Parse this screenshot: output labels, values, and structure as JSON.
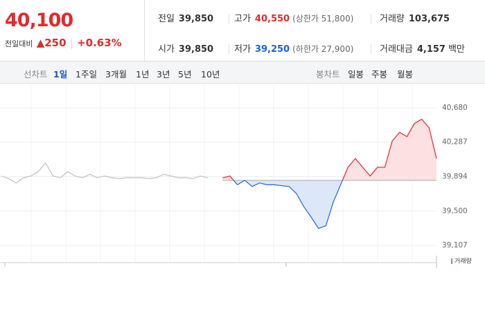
{
  "quote": {
    "price": "40,100",
    "change_label": "전일대비",
    "change": "250",
    "change_pct": "+0.63%",
    "stats": [
      [
        {
          "label": "전일",
          "value": "39,850"
        },
        {
          "label": "고가",
          "value": "40,550",
          "note": "(상한가 51,800)"
        },
        {
          "label": "거래량",
          "value": "103,675"
        }
      ],
      [
        {
          "label": "시가",
          "value": "39,850"
        },
        {
          "label": "저가",
          "value": "39,250",
          "note": "(하한가 27,900)"
        },
        {
          "label": "거래대금",
          "value": "4,157",
          "unit": "백만"
        }
      ]
    ]
  },
  "tabs": {
    "line_label": "선차트",
    "periods": [
      "1일",
      "1주일",
      "3개월",
      "1년",
      "3년",
      "5년",
      "10년"
    ],
    "candle_label": "봉차트",
    "candles": [
      "일봉",
      "주봉",
      "월봉"
    ]
  },
  "chart_data": {
    "type": "line",
    "baseline": 39850,
    "up_color": "#e8323c",
    "down_color": "#2f6fd6",
    "up_fill": "#fde0e1",
    "down_fill": "#dce7f7",
    "legend": "거래량",
    "ylim": [
      39107,
      40680
    ],
    "yticks": [
      {
        "value": 40680,
        "label": "40,680"
      },
      {
        "value": 40287,
        "label": "40,287"
      },
      {
        "value": 39894,
        "label": "39,894"
      },
      {
        "value": 39500,
        "label": "39,500"
      },
      {
        "value": 39107,
        "label": "39,107"
      }
    ],
    "series": [
      {
        "color": "#c4c4c4",
        "values": [
          39900,
          39870,
          39820,
          39880,
          39900,
          39950,
          40050,
          39900,
          39880,
          39950,
          39900,
          39880,
          39920,
          39880,
          39900,
          39880,
          39870,
          39880,
          39880,
          39880,
          39870,
          39880,
          39920,
          39900,
          39880,
          39880,
          39870,
          39900,
          39880,
          null,
          null,
          null,
          null,
          null,
          null,
          null,
          null,
          null,
          null,
          null,
          null,
          null,
          null,
          null,
          null,
          null,
          null,
          null,
          null,
          null,
          null,
          null,
          null,
          null,
          null,
          null,
          null,
          null,
          null,
          null
        ]
      },
      {
        "color": "#e8323c",
        "values": [
          null,
          null,
          null,
          null,
          null,
          null,
          null,
          null,
          null,
          null,
          null,
          null,
          null,
          null,
          null,
          null,
          null,
          null,
          null,
          null,
          null,
          null,
          null,
          null,
          null,
          null,
          null,
          null,
          null,
          null,
          39880,
          39900,
          39800,
          39850,
          39780,
          39820,
          39800,
          39800,
          39790,
          39780,
          39700,
          39550,
          39430,
          39300,
          39330,
          39600,
          39800,
          40000,
          40100,
          40000,
          39900,
          40000,
          40000,
          40300,
          40400,
          40350,
          40500,
          40550,
          40450,
          40100
        ]
      }
    ]
  }
}
